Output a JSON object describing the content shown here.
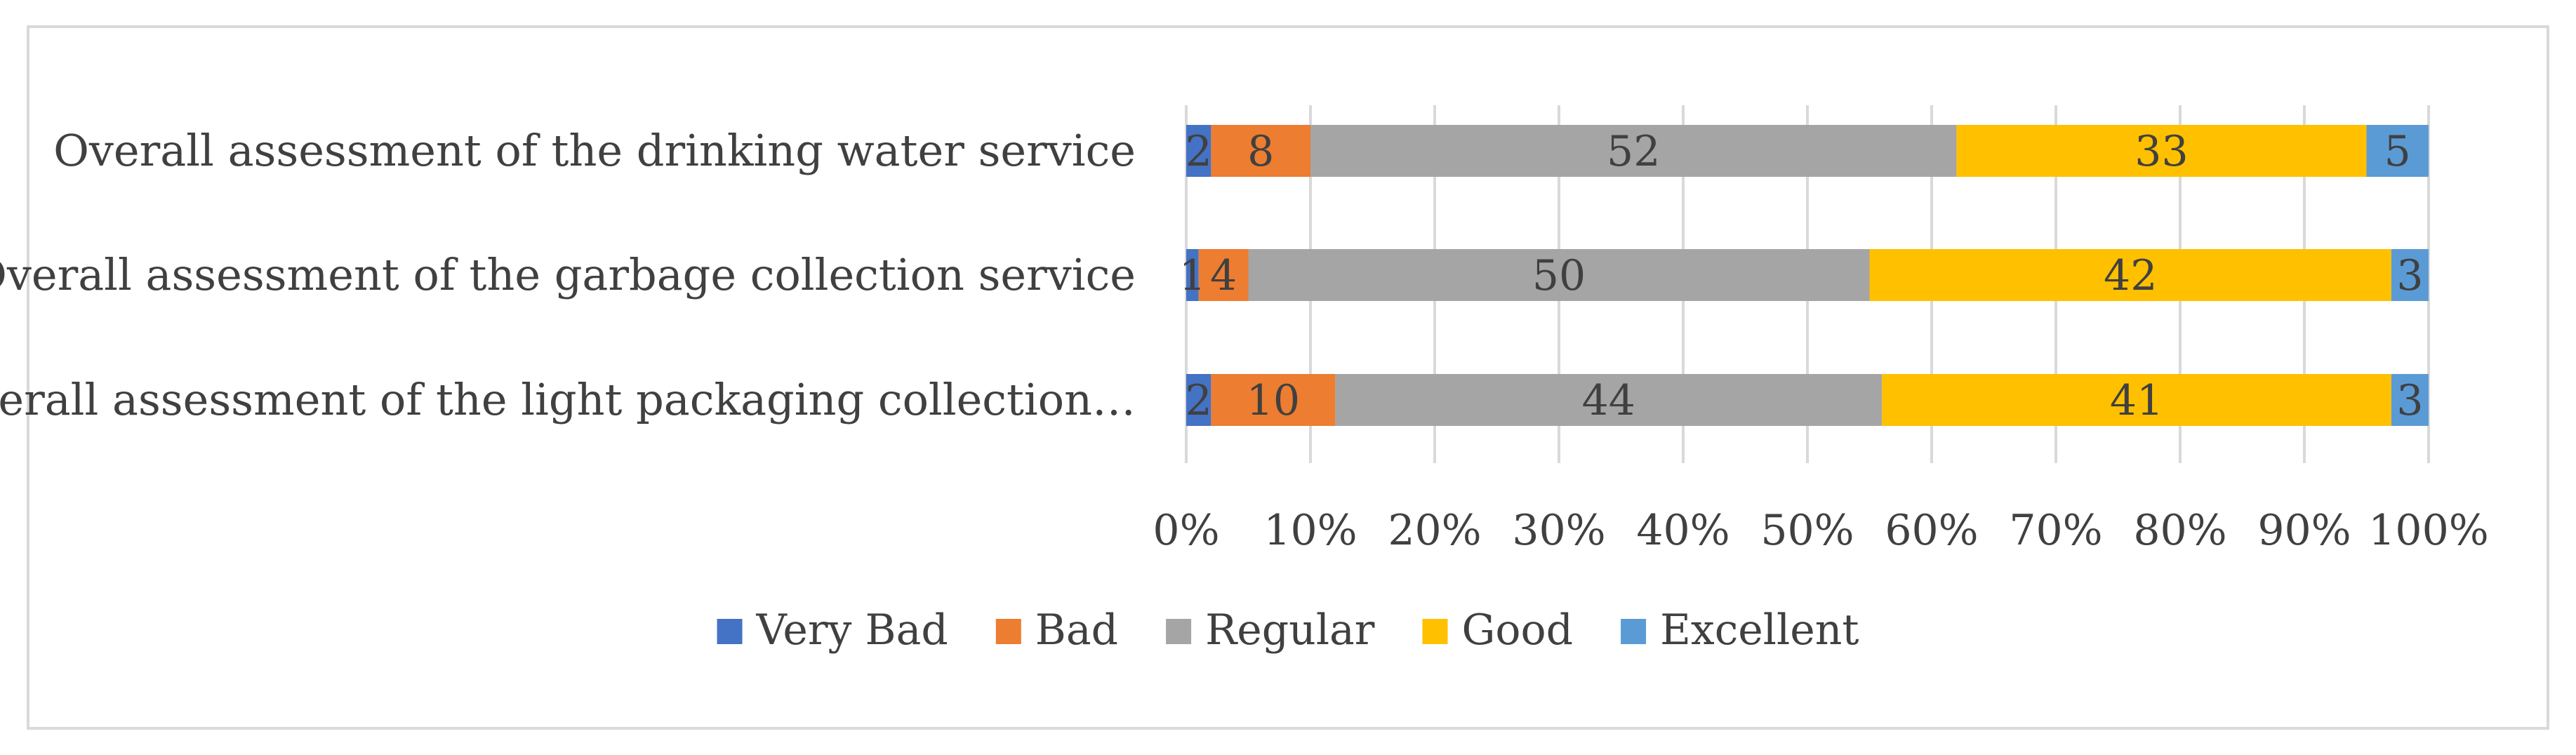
{
  "chart_data": {
    "type": "bar",
    "orientation": "horizontal",
    "stacked": "percent",
    "categories": [
      "Overall assessment of the drinking water service",
      "Overall assessment of the garbage collection service",
      "Overall assessment of the light packaging collection…"
    ],
    "series": [
      {
        "name": "Very Bad",
        "color": "#4472c4",
        "values": [
          2,
          1,
          2
        ]
      },
      {
        "name": "Bad",
        "color": "#ed7d31",
        "values": [
          8,
          4,
          10
        ]
      },
      {
        "name": "Regular",
        "color": "#a5a5a5",
        "values": [
          52,
          50,
          44
        ]
      },
      {
        "name": "Good",
        "color": "#ffc000",
        "values": [
          33,
          42,
          41
        ]
      },
      {
        "name": "Excellent",
        "color": "#5b9bd5",
        "values": [
          5,
          3,
          3
        ]
      }
    ],
    "xlim": [
      0,
      100
    ],
    "xticks": [
      "0%",
      "10%",
      "20%",
      "30%",
      "40%",
      "50%",
      "60%",
      "70%",
      "80%",
      "90%",
      "100%"
    ],
    "grid": true,
    "legend_position": "bottom",
    "title": "",
    "xlabel": "",
    "ylabel": ""
  }
}
